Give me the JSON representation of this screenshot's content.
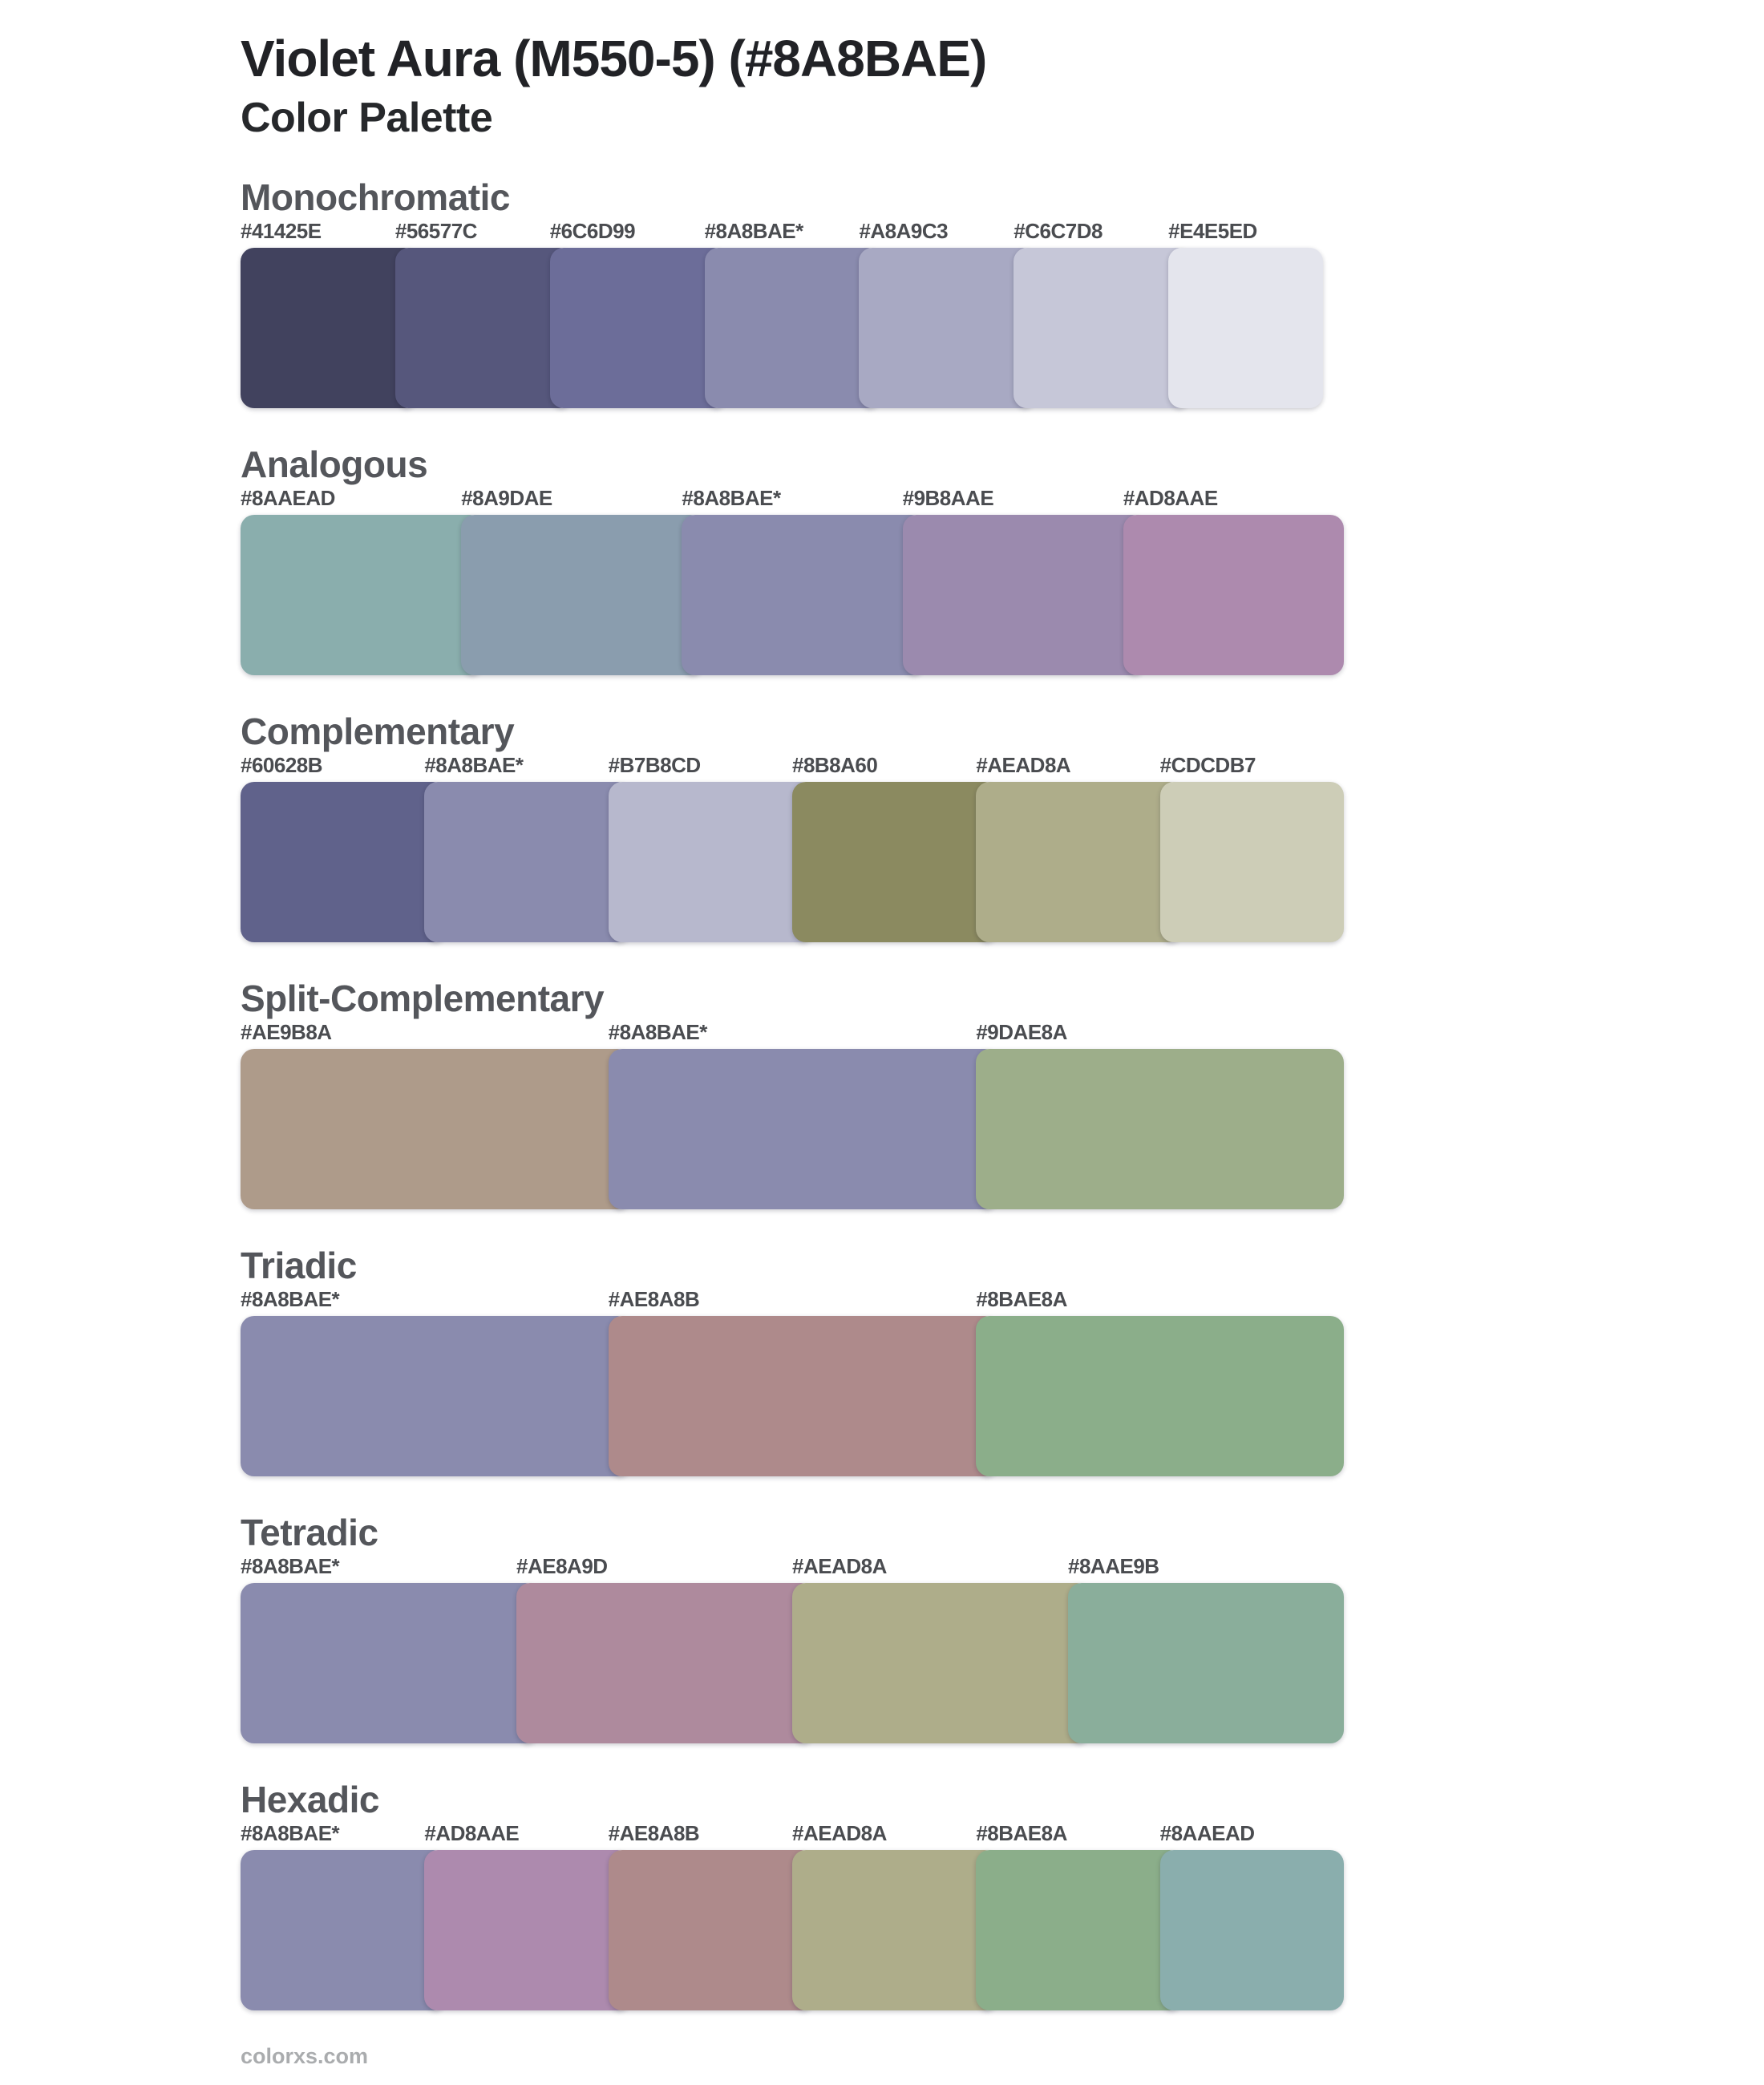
{
  "page": {
    "title": "Violet Aura (M550-5) (#8A8BAE)",
    "subtitle": "Color Palette",
    "footer": "colorxs.com"
  },
  "base_color": "#8A8BAE",
  "sections": [
    {
      "label": "Monochromatic",
      "swatches": [
        {
          "label": "#41425E",
          "color": "#41425E"
        },
        {
          "label": "#56577C",
          "color": "#56577C"
        },
        {
          "label": "#6C6D99",
          "color": "#6C6D99"
        },
        {
          "label": "#8A8BAE*",
          "color": "#8A8BAE"
        },
        {
          "label": "#A8A9C3",
          "color": "#A8A9C3"
        },
        {
          "label": "#C6C7D8",
          "color": "#C6C7D8"
        },
        {
          "label": "#E4E5ED",
          "color": "#E4E5ED"
        }
      ]
    },
    {
      "label": "Analogous",
      "swatches": [
        {
          "label": "#8AAEAD",
          "color": "#8AAEAD"
        },
        {
          "label": "#8A9DAE",
          "color": "#8A9DAE"
        },
        {
          "label": "#8A8BAE*",
          "color": "#8A8BAE"
        },
        {
          "label": "#9B8AAE",
          "color": "#9B8AAE"
        },
        {
          "label": "#AD8AAE",
          "color": "#AD8AAE"
        }
      ]
    },
    {
      "label": "Complementary",
      "swatches": [
        {
          "label": "#60628B",
          "color": "#60628B"
        },
        {
          "label": "#8A8BAE*",
          "color": "#8A8BAE"
        },
        {
          "label": "#B7B8CD",
          "color": "#B7B8CD"
        },
        {
          "label": "#8B8A60",
          "color": "#8B8A60"
        },
        {
          "label": "#AEAD8A",
          "color": "#AEAD8A"
        },
        {
          "label": "#CDCDB7",
          "color": "#CDCDB7"
        }
      ]
    },
    {
      "label": "Split-Complementary",
      "swatches": [
        {
          "label": "#AE9B8A",
          "color": "#AE9B8A"
        },
        {
          "label": "#8A8BAE*",
          "color": "#8A8BAE"
        },
        {
          "label": "#9DAE8A",
          "color": "#9DAE8A"
        }
      ]
    },
    {
      "label": "Triadic",
      "swatches": [
        {
          "label": "#8A8BAE*",
          "color": "#8A8BAE"
        },
        {
          "label": "#AE8A8B",
          "color": "#AE8A8B"
        },
        {
          "label": "#8BAE8A",
          "color": "#8BAE8A"
        }
      ]
    },
    {
      "label": "Tetradic",
      "swatches": [
        {
          "label": "#8A8BAE*",
          "color": "#8A8BAE"
        },
        {
          "label": "#AE8A9D",
          "color": "#AE8A9D"
        },
        {
          "label": "#AEAD8A",
          "color": "#AEAD8A"
        },
        {
          "label": "#8AAE9B",
          "color": "#8AAE9B"
        }
      ]
    },
    {
      "label": "Hexadic",
      "swatches": [
        {
          "label": "#8A8BAE*",
          "color": "#8A8BAE"
        },
        {
          "label": "#AD8AAE",
          "color": "#AD8AAE"
        },
        {
          "label": "#AE8A8B",
          "color": "#AE8A8B"
        },
        {
          "label": "#AEAD8A",
          "color": "#AEAD8A"
        },
        {
          "label": "#8BAE8A",
          "color": "#8BAE8A"
        },
        {
          "label": "#8AAEAD",
          "color": "#8AAEAD"
        }
      ]
    }
  ]
}
